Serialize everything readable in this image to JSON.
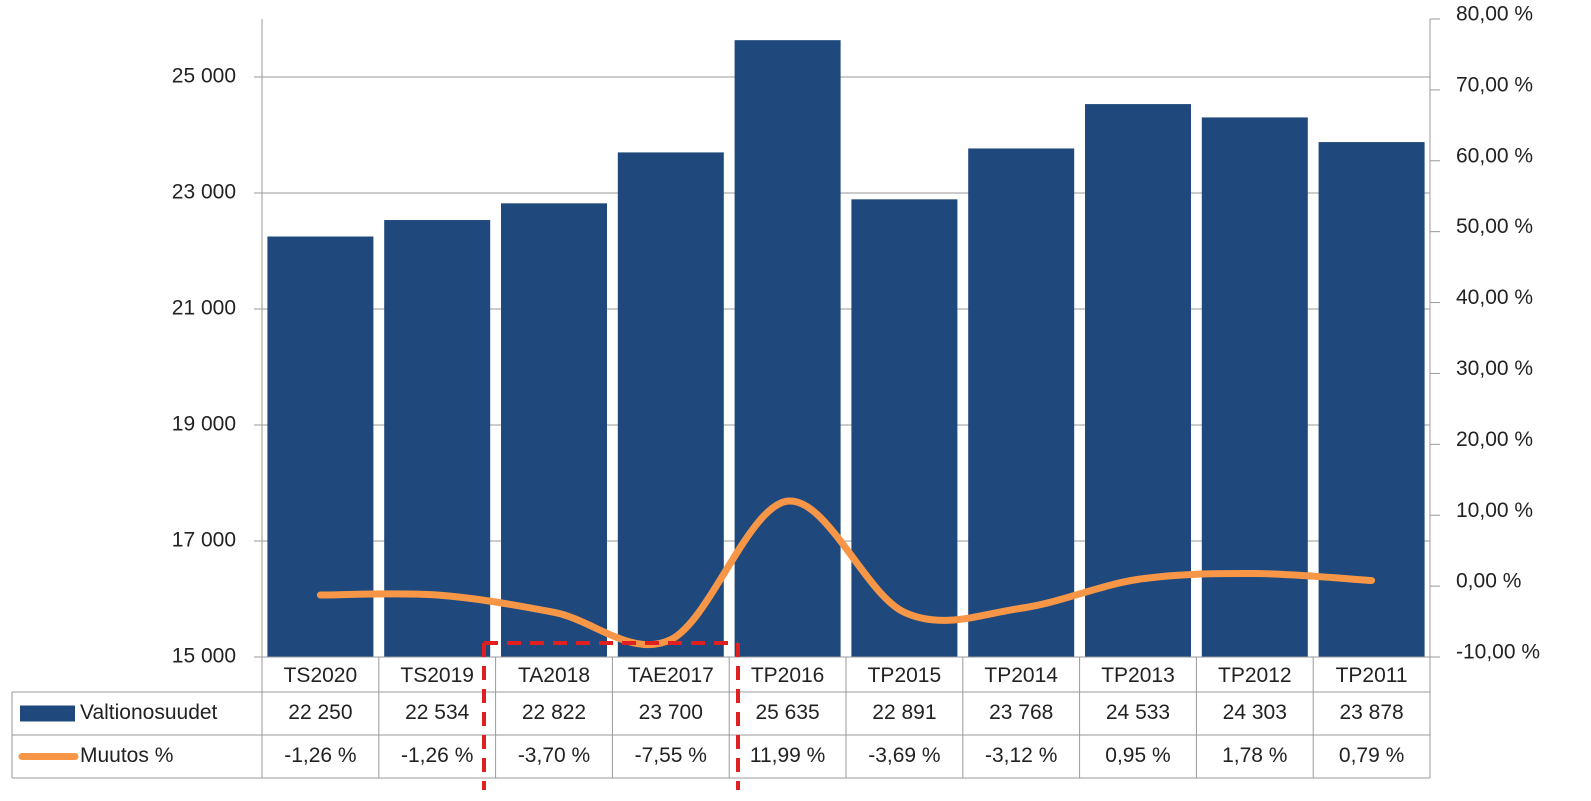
{
  "chart_data": {
    "type": "combo",
    "categories": [
      "TS2020",
      "TS2019",
      "TA2018",
      "TAE2017",
      "TP2016",
      "TP2015",
      "TP2014",
      "TP2013",
      "TP2012",
      "TP2011"
    ],
    "series": [
      {
        "name": "Valtionosuudet",
        "type": "bar",
        "color": "#1f497d",
        "values": [
          22250,
          22534,
          22822,
          23700,
          25635,
          22891,
          23768,
          24533,
          24303,
          23878
        ],
        "value_labels": [
          "22 250",
          "22 534",
          "22 822",
          "23 700",
          "25 635",
          "22 891",
          "23 768",
          "24 533",
          "24 303",
          "23 878"
        ]
      },
      {
        "name": "Muutos %",
        "type": "line",
        "axis": "y2",
        "color": "#f79646",
        "values": [
          -1.26,
          -1.26,
          -3.7,
          -7.55,
          11.99,
          -3.69,
          -3.12,
          0.95,
          1.78,
          0.79
        ],
        "value_labels": [
          "-1,26 %",
          "-1,26 %",
          "-3,70 %",
          "-7,55 %",
          "11,99 %",
          "-3,69 %",
          "-3,12 %",
          "0,95 %",
          "1,78 %",
          "0,79 %"
        ]
      }
    ],
    "ylim": [
      15000,
      26000
    ],
    "yticks": [
      {
        "value": 15000,
        "label": "15 000"
      },
      {
        "value": 17000,
        "label": "17 000"
      },
      {
        "value": 19000,
        "label": "19 000"
      },
      {
        "value": 21000,
        "label": "21 000"
      },
      {
        "value": 23000,
        "label": "23 000"
      },
      {
        "value": 25000,
        "label": "25 000"
      }
    ],
    "y2lim": [
      -10,
      80
    ],
    "y2ticks": [
      {
        "value": -10,
        "label": "-10,00 %"
      },
      {
        "value": 0,
        "label": "0,00 %"
      },
      {
        "value": 10,
        "label": "10,00 %"
      },
      {
        "value": 20,
        "label": "20,00 %"
      },
      {
        "value": 30,
        "label": "30,00 %"
      },
      {
        "value": 40,
        "label": "40,00 %"
      },
      {
        "value": 50,
        "label": "50,00 %"
      },
      {
        "value": 60,
        "label": "60,00 %"
      },
      {
        "value": 70,
        "label": "70,00 %"
      },
      {
        "value": 80,
        "label": "80,00 %"
      }
    ],
    "grid": true
  }
}
